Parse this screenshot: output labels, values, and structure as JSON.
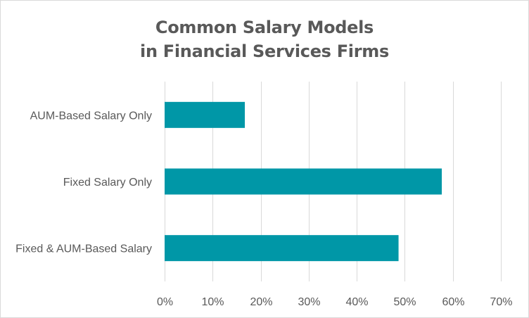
{
  "chart_data": {
    "type": "bar",
    "orientation": "horizontal",
    "title_line1": "Common Salary Models",
    "title_line2": "in Financial Services Firms",
    "categories": [
      "AUM-Based Salary Only",
      "Fixed Salary Only",
      "Fixed & AUM-Based Salary"
    ],
    "values": [
      0.167,
      0.577,
      0.487
    ],
    "xlim": [
      0,
      0.7
    ],
    "xticks": [
      0,
      0.1,
      0.2,
      0.3,
      0.4,
      0.5,
      0.6,
      0.7
    ],
    "xtick_labels": [
      "0%",
      "10%",
      "20%",
      "30%",
      "40%",
      "50%",
      "60%",
      "70%"
    ],
    "grid": "vertical",
    "bar_color": "#0097a7",
    "grid_color": "#d9d9d9",
    "text_color": "#595959"
  }
}
